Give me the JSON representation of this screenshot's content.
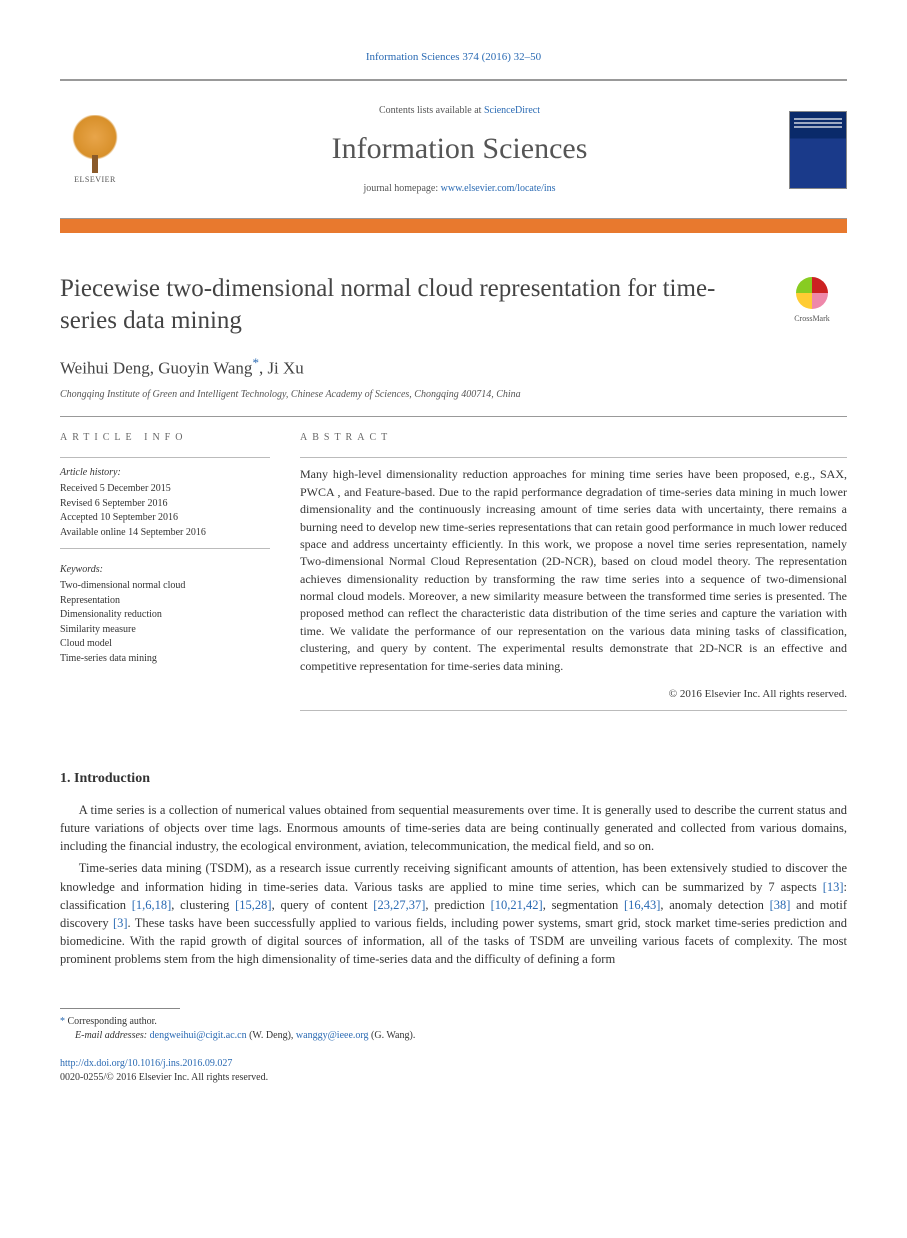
{
  "citation": "Information Sciences 374 (2016) 32–50",
  "header": {
    "contents_prefix": "Contents lists available at ",
    "contents_link": "ScienceDirect",
    "journal": "Information Sciences",
    "homepage_prefix": "journal homepage: ",
    "homepage_link": "www.elsevier.com/locate/ins",
    "elsevier_label": "ELSEVIER",
    "cover_title": "INFORMATION SCIENCES"
  },
  "crossmark_label": "CrossMark",
  "title": "Piecewise two-dimensional normal cloud representation for time-series data mining",
  "authors": {
    "a1": "Weihui Deng",
    "a2": "Guoyin Wang",
    "a2_mark": "*",
    "a3": "Ji Xu",
    "sep": ", "
  },
  "affiliation": "Chongqing Institute of Green and Intelligent Technology, Chinese Academy of Sciences, Chongqing 400714, China",
  "info": {
    "heading": "ARTICLE INFO",
    "history_label": "Article history:",
    "history": {
      "l1": "Received 5 December 2015",
      "l2": "Revised 6 September 2016",
      "l3": "Accepted 10 September 2016",
      "l4": "Available online 14 September 2016"
    },
    "keywords_label": "Keywords:",
    "keywords": {
      "k1": "Two-dimensional normal cloud",
      "k2": "Representation",
      "k3": "Dimensionality reduction",
      "k4": "Similarity measure",
      "k5": "Cloud model",
      "k6": "Time-series data mining"
    }
  },
  "abstract": {
    "heading": "ABSTRACT",
    "text": "Many high-level dimensionality reduction approaches for mining time series have been proposed, e.g., SAX, PWCA , and Feature-based. Due to the rapid performance degradation of time-series data mining in much lower dimensionality and the continuously increasing amount of time series data with uncertainty, there remains a burning need to develop new time-series representations that can retain good performance in much lower reduced space and address uncertainty efficiently. In this work, we propose a novel time series representation, namely Two-dimensional Normal Cloud Representation (2D-NCR), based on cloud model theory. The representation achieves dimensionality reduction by transforming the raw time series into a sequence of two-dimensional normal cloud models. Moreover, a new similarity measure between the transformed time series is presented. The proposed method can reflect the characteristic data distribution of the time series and capture the variation with time. We validate the performance of our representation on the various data mining tasks of classification, clustering, and query by content. The experimental results demonstrate that 2D-NCR is an effective and competitive representation for time-series data mining.",
    "copyright": "© 2016 Elsevier Inc. All rights reserved."
  },
  "intro": {
    "heading": "1. Introduction",
    "p1_a": "A time series is a collection of numerical values obtained from sequential measurements over time. It is generally used to describe the current status and future variations of objects over time lags. Enormous amounts of time-series data are being continually generated and collected from various domains, including the financial industry, the ecological environment, aviation, telecommunication, the medical field, and so on.",
    "p2_a": "Time-series data mining (TSDM), as a research issue currently receiving significant amounts of attention, has been extensively studied to discover the knowledge and information hiding in time-series data. Various tasks are applied to mine time series, which can be summarized by 7 aspects ",
    "r1": "[13]",
    "p2_b": ": classification ",
    "r2": "[1,6,18]",
    "p2_c": ", clustering ",
    "r3": "[15,28]",
    "p2_d": ", query of content ",
    "r4": "[23,27,37]",
    "p2_e": ", prediction ",
    "r5": "[10,21,42]",
    "p2_f": ", segmentation ",
    "r6": "[16,43]",
    "p2_g": ", anomaly detection ",
    "r7": "[38]",
    "p2_h": " and motif discovery ",
    "r8": "[3]",
    "p2_i": ". These tasks have been successfully applied to various fields, including power systems, smart grid, stock market time-series prediction and biomedicine. With the rapid growth of digital sources of information, all of the tasks of TSDM are unveiling various facets of complexity. The most prominent problems stem from the high dimensionality of time-series data and the difficulty of defining a form"
  },
  "footnote": {
    "corr_label": "Corresponding author.",
    "email_label": "E-mail addresses:",
    "email1": "dengweihui@cigit.ac.cn",
    "name1": "(W. Deng),",
    "email2": "wanggy@ieee.org",
    "name2": "(G. Wang)."
  },
  "doi": {
    "link": "http://dx.doi.org/10.1016/j.ins.2016.09.027",
    "issn_line": "0020-0255/© 2016 Elsevier Inc. All rights reserved."
  },
  "colors": {
    "link": "#2a6ab3",
    "orange_bar": "#e8792e",
    "text": "#333333",
    "muted": "#555555"
  }
}
